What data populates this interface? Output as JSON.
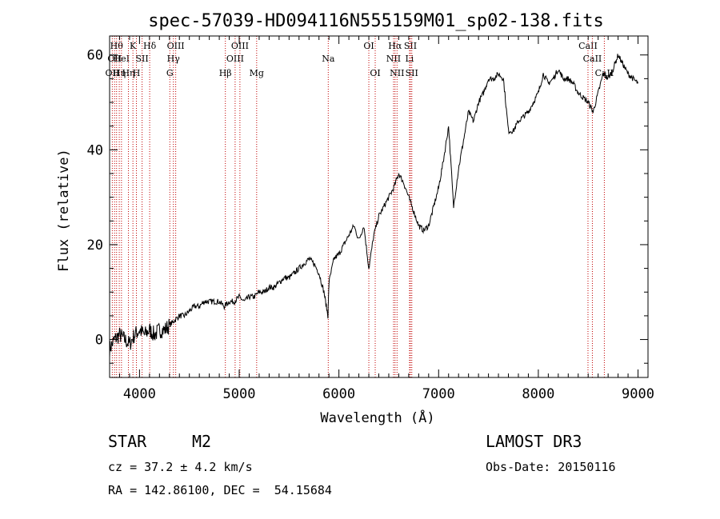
{
  "chart_data": {
    "type": "line",
    "title": "spec-57039-HD094116N555159M01_sp02-138.fits",
    "xlabel": "Wavelength (Å)",
    "ylabel": "Flux (relative)",
    "xlim": [
      3700,
      9100
    ],
    "ylim": [
      -8,
      64
    ],
    "xticks": [
      4000,
      5000,
      6000,
      7000,
      8000,
      9000
    ],
    "yticks": [
      0,
      20,
      40,
      60
    ],
    "series": [
      {
        "name": "spectrum",
        "x": [
          3700,
          3750,
          3800,
          3850,
          3900,
          3950,
          4000,
          4050,
          4100,
          4150,
          4200,
          4250,
          4300,
          4350,
          4400,
          4450,
          4500,
          4550,
          4600,
          4650,
          4700,
          4750,
          4800,
          4850,
          4900,
          4950,
          5000,
          5050,
          5100,
          5150,
          5200,
          5250,
          5300,
          5350,
          5400,
          5450,
          5500,
          5550,
          5600,
          5650,
          5700,
          5750,
          5800,
          5850,
          5890,
          5900,
          5950,
          6000,
          6050,
          6100,
          6150,
          6200,
          6250,
          6300,
          6350,
          6400,
          6450,
          6500,
          6550,
          6600,
          6650,
          6700,
          6750,
          6800,
          6850,
          6900,
          6950,
          7000,
          7050,
          7100,
          7150,
          7200,
          7250,
          7300,
          7350,
          7400,
          7450,
          7500,
          7550,
          7600,
          7650,
          7700,
          7750,
          7800,
          7850,
          7900,
          7950,
          8000,
          8050,
          8100,
          8150,
          8200,
          8250,
          8300,
          8350,
          8400,
          8450,
          8500,
          8550,
          8600,
          8650,
          8700,
          8750,
          8800,
          8850,
          8900,
          8950,
          9000
        ],
        "y": [
          -2,
          0,
          1,
          0,
          -1,
          1,
          2,
          1,
          2,
          1,
          2,
          2,
          3,
          4,
          5,
          5,
          6,
          7,
          7,
          8,
          8,
          8,
          8,
          7,
          8,
          8,
          9,
          8,
          9,
          9,
          10,
          10,
          11,
          11,
          12,
          13,
          13,
          14,
          15,
          16,
          17,
          16,
          14,
          10,
          5,
          12,
          17,
          18,
          20,
          22,
          24,
          21,
          24,
          15,
          22,
          26,
          28,
          30,
          32,
          35,
          33,
          30,
          27,
          24,
          23,
          24,
          28,
          32,
          38,
          45,
          28,
          36,
          42,
          48,
          46,
          50,
          52,
          55,
          55,
          56,
          55,
          44,
          44,
          46,
          47,
          48,
          50,
          52,
          56,
          54,
          55,
          57,
          55,
          55,
          54,
          52,
          51,
          50,
          48,
          52,
          56,
          55,
          57,
          60,
          58,
          56,
          55,
          54
        ]
      }
    ],
    "line_markers": [
      {
        "wavelength": 3727,
        "row": 3,
        "label": "OII"
      },
      {
        "wavelength": 3750,
        "row": 2,
        "label": "OII"
      },
      {
        "wavelength": 3770,
        "row": 1,
        "label": "Hθ"
      },
      {
        "wavelength": 3797,
        "row": 3,
        "label": "Hη"
      },
      {
        "wavelength": 3819,
        "row": 2,
        "label": "HeI"
      },
      {
        "wavelength": 3889,
        "row": 3,
        "label": "Hη"
      },
      {
        "wavelength": 3934,
        "row": 1,
        "label": "K"
      },
      {
        "wavelength": 3969,
        "row": 3,
        "label": "H"
      },
      {
        "wavelength": 4026,
        "row": 2,
        "label": "SII"
      },
      {
        "wavelength": 4102,
        "row": 1,
        "label": "Hδ"
      },
      {
        "wavelength": 4304,
        "row": 3,
        "label": "G"
      },
      {
        "wavelength": 4340,
        "row": 2,
        "label": "Hγ"
      },
      {
        "wavelength": 4363,
        "row": 1,
        "label": "OIII"
      },
      {
        "wavelength": 4861,
        "row": 3,
        "label": "Hβ"
      },
      {
        "wavelength": 4959,
        "row": 2,
        "label": "OIII"
      },
      {
        "wavelength": 5007,
        "row": 1,
        "label": "OIII"
      },
      {
        "wavelength": 5175,
        "row": 3,
        "label": "Mg"
      },
      {
        "wavelength": 5893,
        "row": 2,
        "label": "Na"
      },
      {
        "wavelength": 6300,
        "row": 1,
        "label": "OI"
      },
      {
        "wavelength": 6364,
        "row": 3,
        "label": "OI"
      },
      {
        "wavelength": 6548,
        "row": 2,
        "label": "NII"
      },
      {
        "wavelength": 6563,
        "row": 1,
        "label": "Hα"
      },
      {
        "wavelength": 6583,
        "row": 3,
        "label": "NII"
      },
      {
        "wavelength": 6708,
        "row": 2,
        "label": "Li"
      },
      {
        "wavelength": 6717,
        "row": 1,
        "label": "SII"
      },
      {
        "wavelength": 6731,
        "row": 3,
        "label": "SII"
      },
      {
        "wavelength": 8498,
        "row": 1,
        "label": "CaII"
      },
      {
        "wavelength": 8542,
        "row": 2,
        "label": "CaII"
      },
      {
        "wavelength": 8662,
        "row": 3,
        "label": "CaII"
      }
    ]
  },
  "info": {
    "class": "STAR",
    "subclass": "M2",
    "survey": "LAMOST DR3",
    "redshift": "cz = 37.2 ± 4.2 km/s",
    "obs_date": "Obs-Date: 20150116",
    "coords": "RA = 142.86100, DEC =  54.15684"
  }
}
